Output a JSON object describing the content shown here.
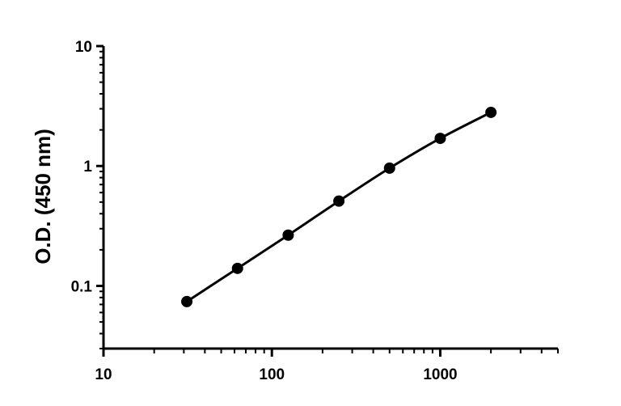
{
  "chart_data": {
    "type": "scatter",
    "title": "",
    "xlabel": "",
    "ylabel": "O.D. (450 nm)",
    "x_scale": "log",
    "y_scale": "log",
    "xlim": [
      10,
      5000
    ],
    "ylim": [
      0.03,
      10
    ],
    "x_ticks": [
      {
        "value": 10,
        "label": "10"
      },
      {
        "value": 100,
        "label": "100"
      },
      {
        "value": 1000,
        "label": "1000"
      }
    ],
    "y_ticks": [
      {
        "value": 0.1,
        "label": "0.1"
      },
      {
        "value": 1,
        "label": "1"
      },
      {
        "value": 10,
        "label": "10"
      }
    ],
    "grid": false,
    "legend": "none",
    "fit_line": true,
    "color": "#000000",
    "series": [
      {
        "x": [
          31.25,
          62.5,
          125,
          250,
          500,
          1000,
          2000
        ],
        "y": [
          0.074,
          0.14,
          0.265,
          0.51,
          0.96,
          1.7,
          2.8
        ]
      }
    ]
  }
}
